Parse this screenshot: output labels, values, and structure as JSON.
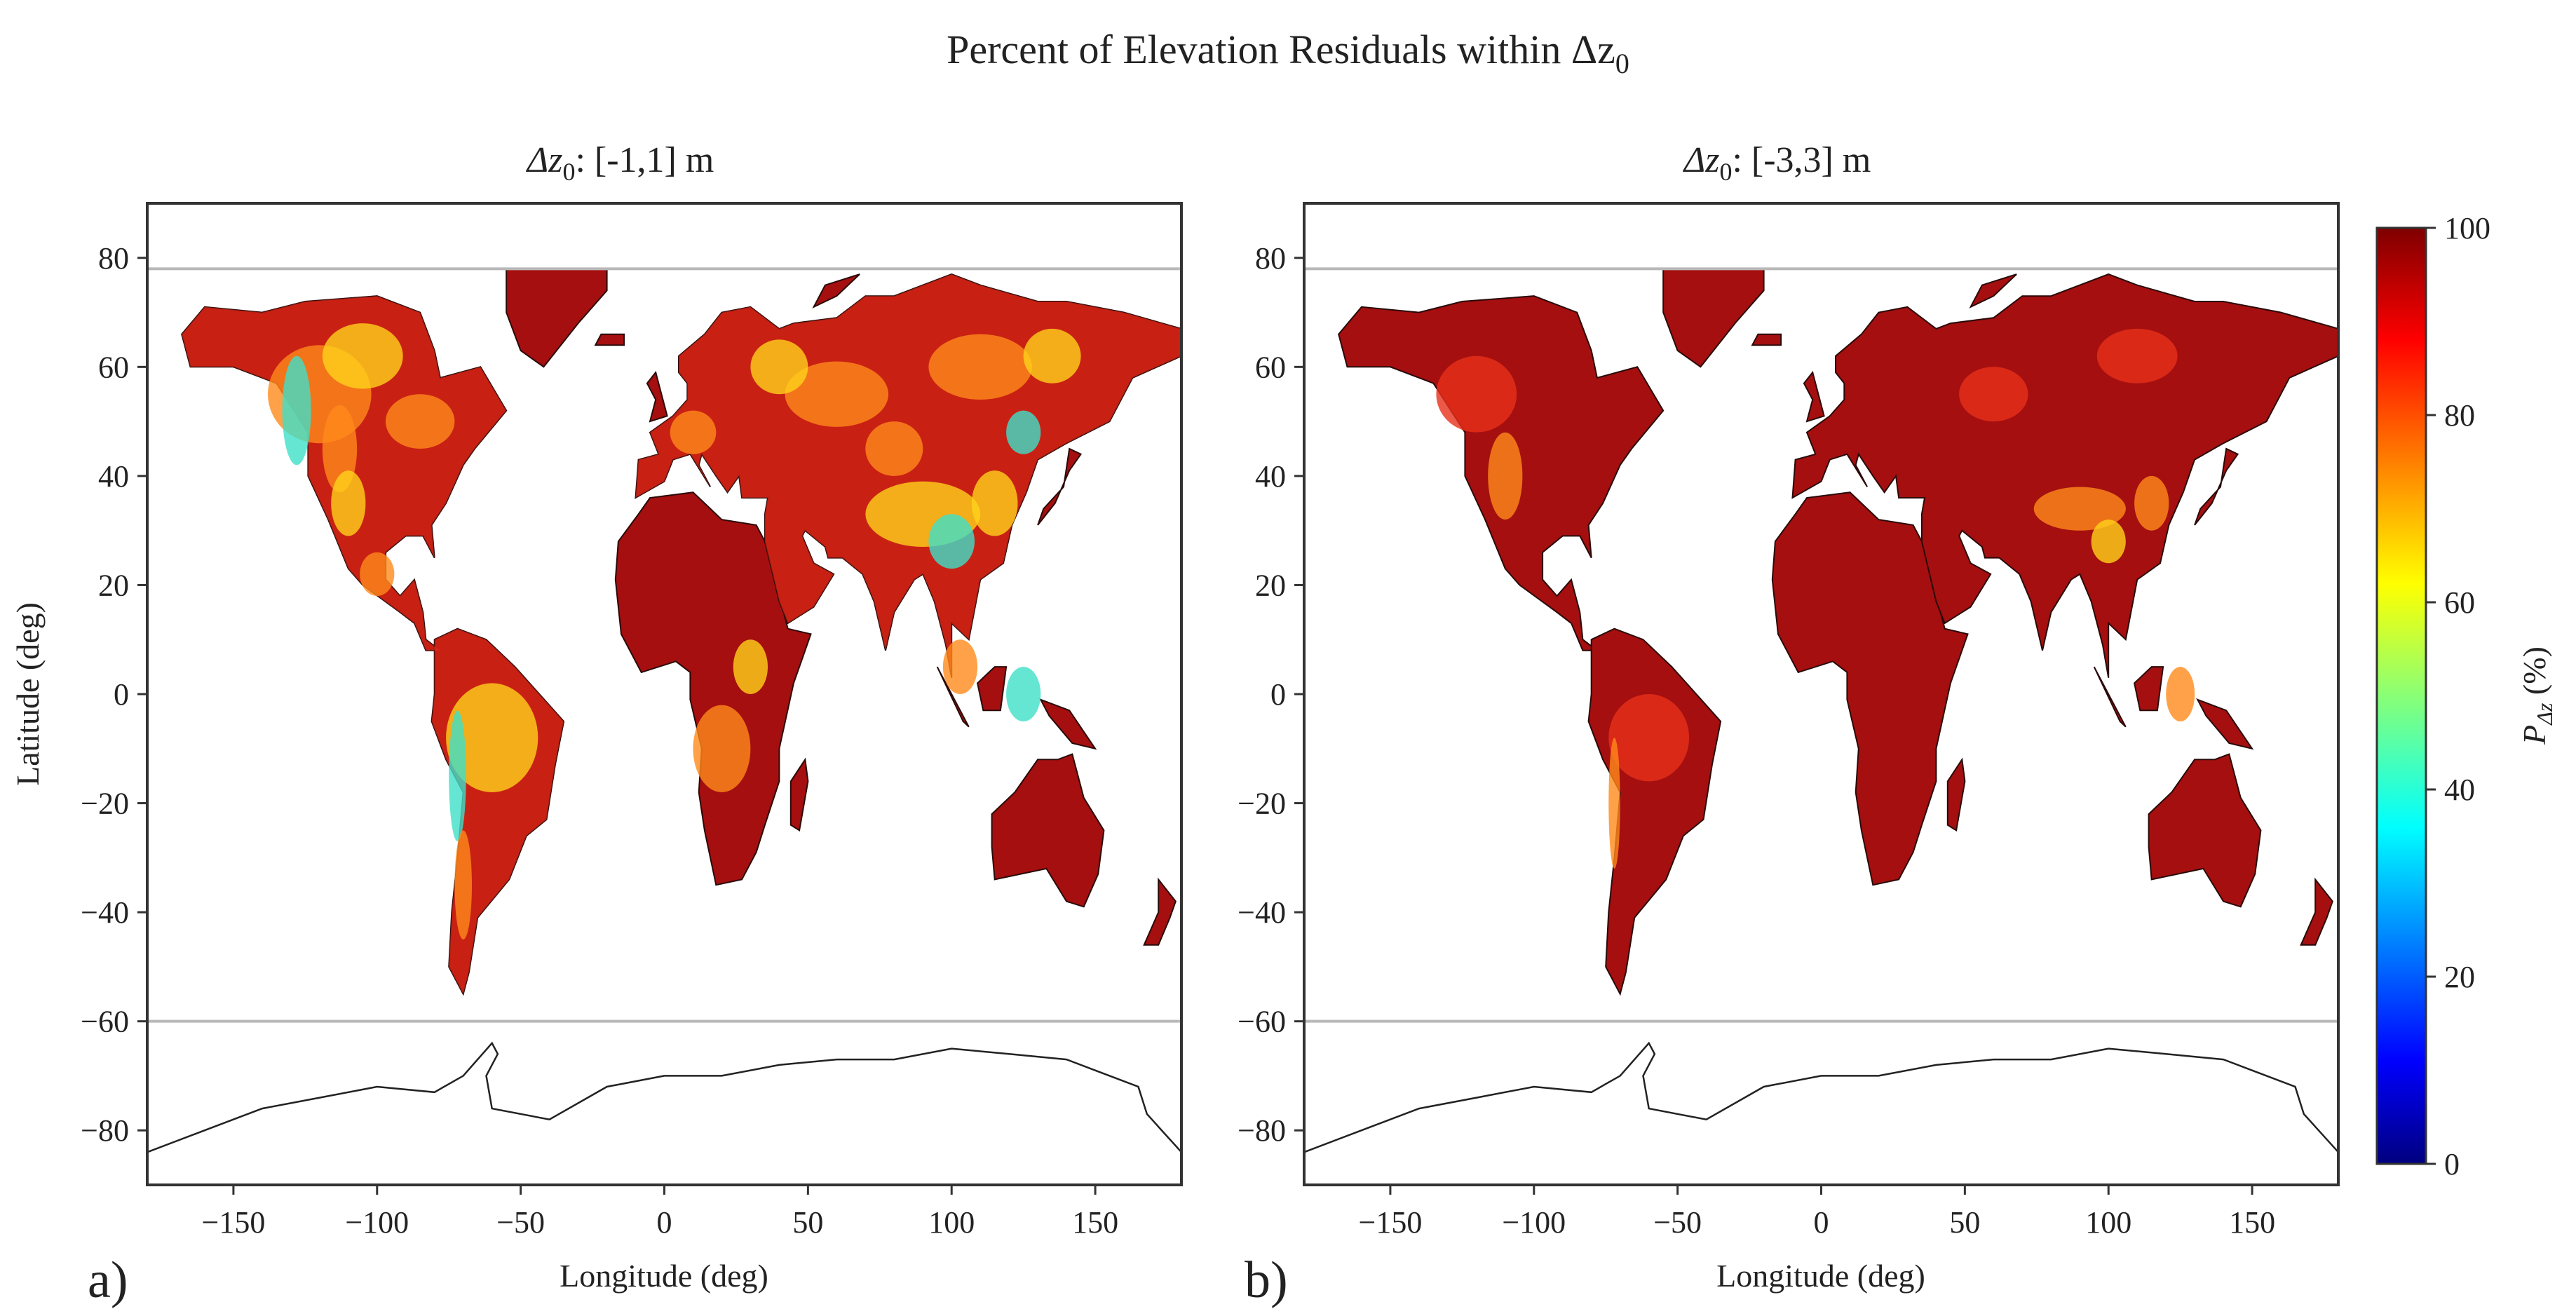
{
  "figure": {
    "title": "Percent of Elevation Residuals within Δz",
    "title_subscript": "0"
  },
  "panels": [
    {
      "id": "a",
      "label": "a)",
      "title_prefix": "Δz",
      "title_subscript": "0",
      "title_suffix": ": [-1,1] m",
      "xlabel": "Longitude (deg)",
      "ylabel": "Latitude (deg)",
      "xticks": [
        "−150",
        "−100",
        "−50",
        "0",
        "50",
        "100",
        "150"
      ],
      "yticks": [
        "80",
        "60",
        "40",
        "20",
        "0",
        "−20",
        "−40",
        "−60",
        "−80"
      ]
    },
    {
      "id": "b",
      "label": "b)",
      "title_prefix": "Δz",
      "title_subscript": "0",
      "title_suffix": ": [-3,3] m",
      "xlabel": "Longitude (deg)",
      "xticks": [
        "−150",
        "−100",
        "−50",
        "0",
        "50",
        "100",
        "150"
      ],
      "yticks": [
        "80",
        "60",
        "40",
        "20",
        "0",
        "−20",
        "−40",
        "−60",
        "−80"
      ]
    }
  ],
  "colorbar": {
    "label_main": "P",
    "label_sub": "Δz",
    "label_units": " (%)",
    "ticks": [
      "100",
      "80",
      "60",
      "40",
      "20",
      "0"
    ],
    "colormap": "jet"
  },
  "map": {
    "x_range": [
      -180,
      180
    ],
    "y_range": [
      -90,
      90
    ],
    "reference_lines_lat": [
      78,
      -60
    ],
    "colors": {
      "ocean": "#ffffff",
      "high": "#a50f0f",
      "mid_high": "#e8301a",
      "mid": "#ff8a1a",
      "mid_low": "#ffd21a",
      "low": "#3fe0c8",
      "reference_line": "#b8b8b8",
      "frame": "#333333"
    }
  }
}
